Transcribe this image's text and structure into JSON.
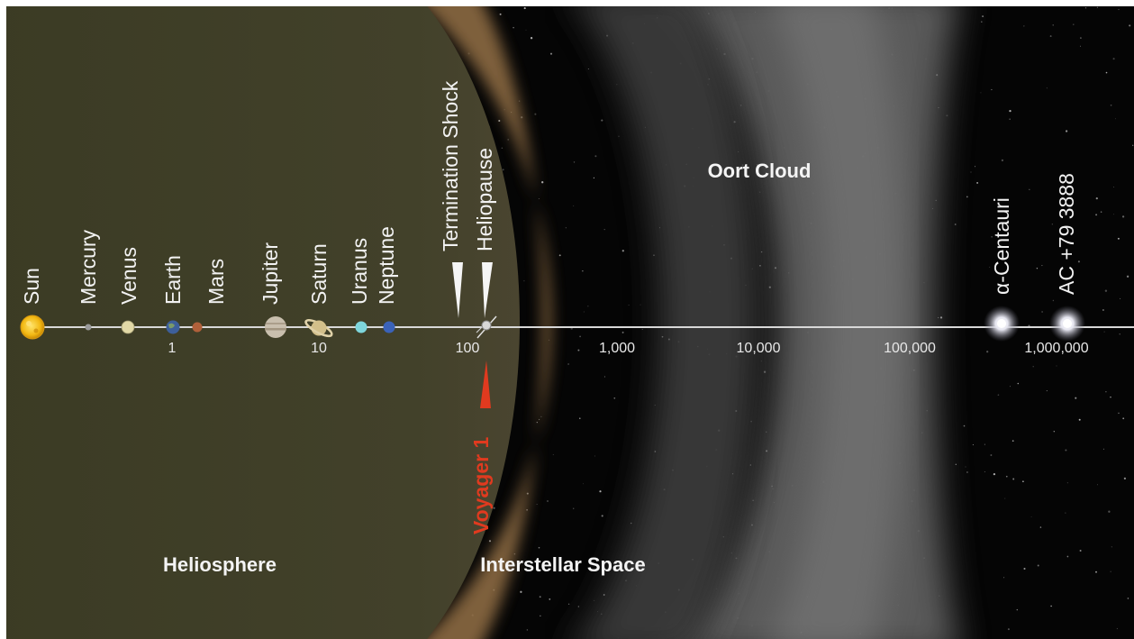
{
  "colors": {
    "heliosphere": "#3a3a22",
    "heliosheath": "#8a6a40",
    "oort_cloud": "#6c6c6c",
    "space": "#050505",
    "axis": "#d8d8d8",
    "voyager": "#e03a1f",
    "sun": "#f2c21a"
  },
  "objects": [
    {
      "name": "Sun",
      "icon": "sun-icon"
    },
    {
      "name": "Mercury",
      "icon": "planet-icon"
    },
    {
      "name": "Venus",
      "icon": "planet-icon"
    },
    {
      "name": "Earth",
      "icon": "planet-icon"
    },
    {
      "name": "Mars",
      "icon": "planet-icon"
    },
    {
      "name": "Jupiter",
      "icon": "planet-icon"
    },
    {
      "name": "Saturn",
      "icon": "ringed-planet-icon"
    },
    {
      "name": "Uranus",
      "icon": "planet-icon"
    },
    {
      "name": "Neptune",
      "icon": "planet-icon"
    }
  ],
  "boundaries": {
    "termination_shock": "Termination Shock",
    "heliopause": "Heliopause"
  },
  "stars": [
    {
      "name": "α-Centauri",
      "icon": "star-glow-icon"
    },
    {
      "name": "AC +79 3888",
      "icon": "star-glow-icon"
    }
  ],
  "spacecraft": {
    "name": "Voyager 1",
    "icon": "voyager-icon"
  },
  "axis_ticks": [
    "1",
    "10",
    "100",
    "1,000",
    "10,000",
    "100,000",
    "1,000,000"
  ],
  "regions": {
    "heliosphere": "Heliosphere",
    "interstellar_space": "Interstellar Space",
    "oort_cloud": "Oort Cloud"
  }
}
